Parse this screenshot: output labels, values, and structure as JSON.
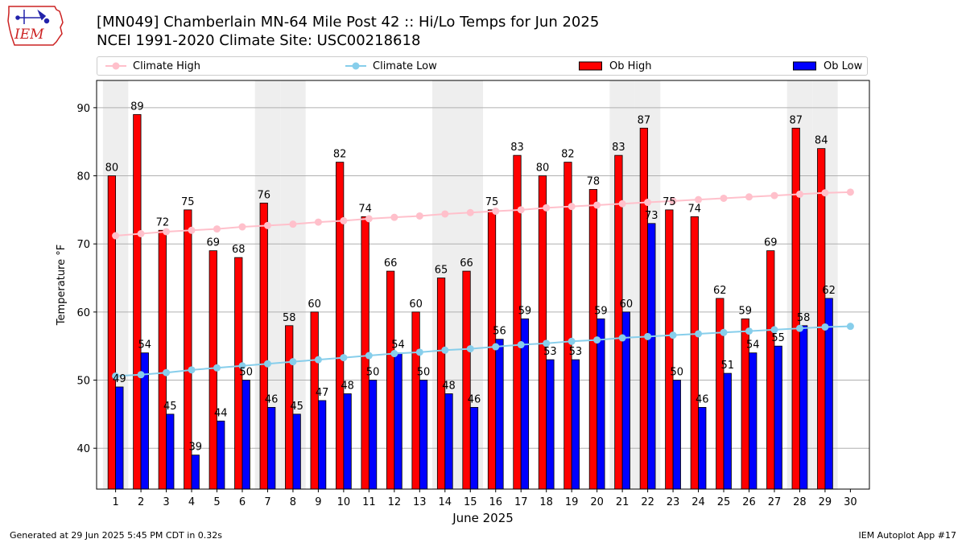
{
  "header": {
    "title_line1": "[MN049] Chamberlain MN-64 Mile Post 42 :: Hi/Lo Temps for Jun 2025",
    "title_line2": "NCEI 1991-2020 Climate Site: USC00218618"
  },
  "logo": {
    "text": "IEM"
  },
  "legend": {
    "climate_high": "Climate High",
    "climate_low": "Climate Low",
    "ob_high": "Ob High",
    "ob_low": "Ob Low"
  },
  "colors": {
    "ob_high": "#ff0000",
    "ob_low": "#0000ff",
    "climate_high": "#ffc0cb",
    "climate_low": "#87ceeb",
    "weekend_band": "#eeeeee",
    "grid": "#b0b0b0"
  },
  "footer": {
    "generated": "Generated at 29 Jun 2025 5:45 PM CDT in 0.32s",
    "app": "IEM Autoplot App #17"
  },
  "chart_data": {
    "type": "bar",
    "xlabel": "June 2025",
    "ylabel": "Temperature °F",
    "ylim": [
      34,
      94
    ],
    "yticks": [
      40,
      50,
      60,
      70,
      80,
      90
    ],
    "grid": "horizontal",
    "legend_position": "top",
    "categories": [
      "1",
      "2",
      "3",
      "4",
      "5",
      "6",
      "7",
      "8",
      "9",
      "10",
      "11",
      "12",
      "13",
      "14",
      "15",
      "16",
      "17",
      "18",
      "19",
      "20",
      "21",
      "22",
      "23",
      "24",
      "25",
      "26",
      "27",
      "28",
      "29",
      "30"
    ],
    "series": [
      {
        "name": "Ob High",
        "kind": "bar",
        "values": [
          80,
          89,
          72,
          75,
          69,
          68,
          76,
          58,
          60,
          82,
          74,
          66,
          60,
          65,
          66,
          75,
          83,
          80,
          82,
          78,
          83,
          87,
          75,
          74,
          62,
          59,
          69,
          87,
          84,
          null
        ],
        "labels": [
          "80",
          "89",
          "72",
          "75",
          "69",
          "68",
          "76",
          "58",
          "60",
          "82",
          "74",
          "66",
          "60",
          "65",
          "66",
          "75",
          "83",
          "80",
          "82",
          "78",
          "83",
          "87",
          "75",
          "74",
          "62",
          "59",
          "69",
          "87",
          "84",
          ""
        ]
      },
      {
        "name": "Ob Low",
        "kind": "bar",
        "values": [
          49,
          54,
          45,
          39,
          44,
          50,
          46,
          45,
          47,
          48,
          50,
          54,
          50,
          48,
          46,
          56,
          59,
          53,
          53,
          59,
          60,
          73,
          50,
          46,
          51,
          54,
          55,
          58,
          62,
          null
        ],
        "labels": [
          "49",
          "54",
          "45",
          "39",
          "44",
          "50",
          "46",
          "45",
          "47",
          "48",
          "50",
          "54",
          "50",
          "48",
          "46",
          "56",
          "59",
          "53",
          "53",
          "59",
          "60",
          "73",
          "50",
          "46",
          "51",
          "54",
          "55",
          "58",
          "62",
          ""
        ]
      },
      {
        "name": "Climate High",
        "kind": "line",
        "values": [
          71.2,
          71.5,
          71.8,
          72.0,
          72.2,
          72.5,
          72.7,
          72.9,
          73.2,
          73.4,
          73.7,
          73.9,
          74.1,
          74.4,
          74.6,
          74.8,
          75.0,
          75.3,
          75.5,
          75.7,
          75.9,
          76.1,
          76.3,
          76.5,
          76.7,
          76.9,
          77.1,
          77.3,
          77.5,
          77.6
        ]
      },
      {
        "name": "Climate Low",
        "kind": "line",
        "values": [
          50.6,
          50.8,
          51.1,
          51.5,
          51.8,
          52.1,
          52.4,
          52.7,
          53.0,
          53.3,
          53.6,
          53.9,
          54.1,
          54.4,
          54.6,
          54.9,
          55.2,
          55.4,
          55.7,
          55.9,
          56.2,
          56.4,
          56.6,
          56.8,
          57.0,
          57.2,
          57.4,
          57.6,
          57.8,
          57.9
        ]
      }
    ],
    "weekend_days": [
      "1",
      "7",
      "8",
      "14",
      "15",
      "21",
      "22",
      "28",
      "29"
    ]
  }
}
